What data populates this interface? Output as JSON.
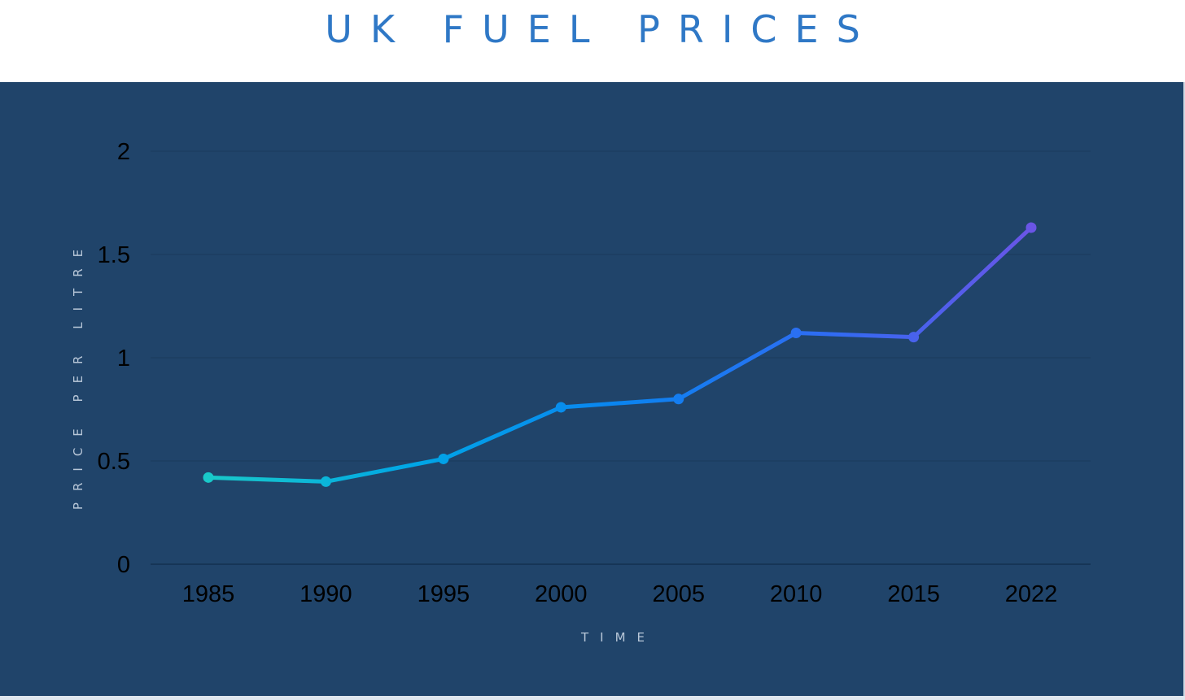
{
  "page": {
    "title": "UK FUEL PRICES"
  },
  "chart_data": {
    "type": "line",
    "title": "UK FUEL PRICES",
    "xlabel": "TIME",
    "ylabel": "PRICE PER LITRE",
    "categories": [
      "1985",
      "1990",
      "1995",
      "2000",
      "2005",
      "2010",
      "2015",
      "2022"
    ],
    "series": [
      {
        "values": [
          0.42,
          0.4,
          0.51,
          0.76,
          0.8,
          1.12,
          1.1,
          1.63
        ]
      }
    ],
    "ylim": [
      0,
      2
    ],
    "yticks": [
      "0",
      "0.5",
      "1",
      "1.5",
      "2"
    ],
    "grid": true,
    "legend": "none",
    "colors": {
      "background": "#20446a",
      "title": "#2f78c6",
      "grid": "#1a3a5c",
      "gradient": [
        "#19c9c9",
        "#00a6e6",
        "#0a84f0",
        "#2f6cf2",
        "#6a55e6"
      ]
    }
  }
}
